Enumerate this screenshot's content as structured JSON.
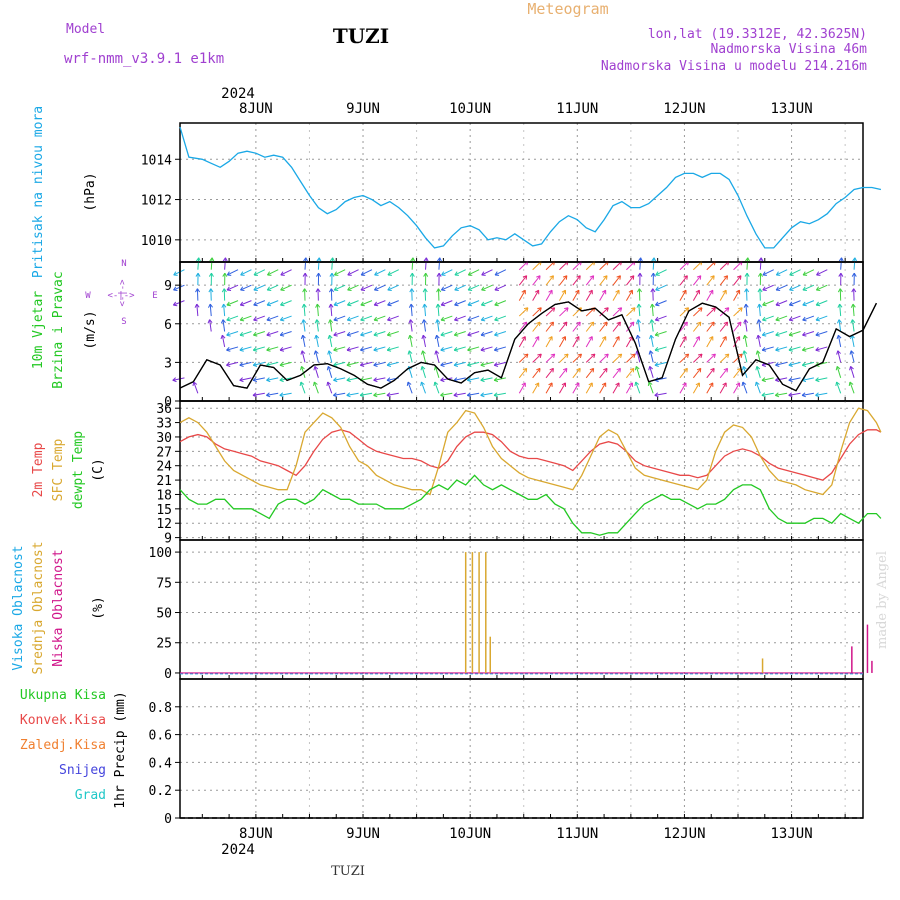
{
  "header": {
    "model_label": "Model",
    "model_value": "wrf-nmm_v3.9.1  e1km",
    "station": "TUZI",
    "app_title": "Meteogram",
    "coords": "lon,lat (19.3312E, 42.3625N)",
    "altitude": "Nadmorska Visina 46m",
    "model_altitude": "Nadmorska Visina u modelu 214.216m",
    "footer_station": "TUZI",
    "watermark": "made by Angel"
  },
  "colors": {
    "pressure": "#1aa8e6",
    "temp2m": "#e84848",
    "sfc_temp": "#d9a830",
    "dewpoint": "#22c822",
    "high_cloud": "#1aa8e6",
    "mid_cloud": "#d9a830",
    "low_cloud": "#d0158a",
    "rain_total": "#22c822",
    "rain_conv": "#e84848",
    "freezing": "#f08030",
    "snow": "#4444dd",
    "hail": "#20c8c8",
    "model": "#a040d0",
    "meteogram": "#e8b070"
  },
  "x_axis": {
    "year": "2024",
    "days": [
      "8JUN",
      "9JUN",
      "10JUN",
      "11JUN",
      "12JUN",
      "13JUN"
    ],
    "start_hours_before_8jun": 17,
    "end_hours_after_13jun": 16
  },
  "chart_data": [
    {
      "type": "line",
      "panel": "pressure",
      "ylabel_name": "Pritisak na nivou mora",
      "unit": "(hPa)",
      "ylim": [
        1008.9,
        1015.8
      ],
      "yticks": [
        1010,
        1012,
        1014
      ],
      "x_hours": [
        -17,
        -15,
        -12,
        -10,
        -8,
        -6,
        -4,
        -2,
        0,
        2,
        4,
        6,
        8,
        10,
        12,
        14,
        16,
        18,
        20,
        22,
        24,
        26,
        28,
        30,
        32,
        34,
        36,
        38,
        40,
        42,
        44,
        46,
        48,
        50,
        52,
        54,
        56,
        58,
        60,
        62,
        64,
        66,
        68,
        70,
        72,
        74,
        76,
        78,
        80,
        82,
        84,
        86,
        88,
        90,
        92,
        94,
        96,
        98,
        100,
        102,
        104,
        106,
        108,
        110,
        112,
        114,
        116,
        118,
        120,
        122,
        124,
        126,
        128,
        130,
        132,
        134,
        136,
        138,
        140
      ],
      "series": [
        {
          "key": "pressure",
          "values": [
            1015.6,
            1014.1,
            1014.0,
            1013.8,
            1013.6,
            1013.9,
            1014.3,
            1014.4,
            1014.3,
            1014.1,
            1014.2,
            1014.1,
            1013.6,
            1012.9,
            1012.2,
            1011.6,
            1011.3,
            1011.5,
            1011.9,
            1012.1,
            1012.2,
            1012.0,
            1011.7,
            1011.9,
            1011.6,
            1011.2,
            1010.7,
            1010.1,
            1009.6,
            1009.7,
            1010.2,
            1010.6,
            1010.7,
            1010.5,
            1010.0,
            1010.1,
            1010.0,
            1010.3,
            1010.0,
            1009.7,
            1009.8,
            1010.4,
            1010.9,
            1011.2,
            1011.0,
            1010.6,
            1010.4,
            1011.0,
            1011.7,
            1011.9,
            1011.6,
            1011.6,
            1011.8,
            1012.2,
            1012.6,
            1013.1,
            1013.3,
            1013.3,
            1013.1,
            1013.3,
            1013.3,
            1013.0,
            1012.2,
            1011.2,
            1010.3,
            1009.6,
            1009.6,
            1010.1,
            1010.6,
            1010.9,
            1010.8,
            1011.0,
            1011.3,
            1011.8,
            1012.1,
            1012.5,
            1012.6,
            1012.6,
            1012.5
          ]
        }
      ]
    },
    {
      "type": "line",
      "panel": "wind",
      "ylabel_name": "10m Vjetar",
      "ylabel_sub": "Brzina i Pravac",
      "unit": "(m/s)",
      "ylim": [
        0,
        10.8
      ],
      "yticks": [
        0,
        3,
        6,
        9
      ],
      "compass": {
        "n": "N",
        "s": "S",
        "e": "E",
        "w": "W",
        "sep": "<-|->"
      },
      "x_hours": [
        -17,
        -14,
        -11,
        -8,
        -5,
        -2,
        1,
        4,
        7,
        10,
        13,
        16,
        19,
        22,
        25,
        28,
        31,
        34,
        37,
        40,
        43,
        46,
        49,
        52,
        55,
        58,
        61,
        64,
        67,
        70,
        73,
        76,
        79,
        82,
        85,
        88,
        91,
        94,
        97,
        100,
        103,
        106,
        109,
        112,
        115,
        118,
        121,
        124,
        127,
        130,
        133,
        136,
        139
      ],
      "series": [
        {
          "key": "speed",
          "values": [
            1.0,
            1.5,
            3.2,
            2.8,
            1.2,
            1.0,
            2.8,
            2.6,
            1.6,
            2.0,
            2.8,
            2.9,
            2.5,
            2.0,
            1.3,
            1.0,
            1.6,
            2.5,
            3.0,
            2.8,
            1.7,
            1.4,
            2.2,
            2.4,
            1.8,
            4.8,
            6.0,
            6.8,
            7.5,
            7.7,
            7.0,
            7.2,
            6.3,
            6.7,
            4.5,
            1.5,
            1.8,
            4.8,
            7.0,
            7.6,
            7.3,
            6.5,
            2.0,
            3.2,
            2.8,
            1.3,
            0.8,
            2.5,
            3.0,
            5.6,
            5.0,
            5.5,
            7.6
          ]
        }
      ]
    },
    {
      "type": "line",
      "panel": "temperature",
      "ylabel_names": [
        "2m Temp",
        "SFC Temp",
        "dewpt Temp"
      ],
      "unit": "(C)",
      "ylim": [
        8.5,
        37.5
      ],
      "yticks": [
        9,
        12,
        15,
        18,
        21,
        24,
        27,
        30,
        33,
        36
      ],
      "x_hours": [
        -17,
        -15,
        -13,
        -11,
        -9,
        -7,
        -5,
        -3,
        -1,
        1,
        3,
        5,
        7,
        9,
        11,
        13,
        15,
        17,
        19,
        21,
        23,
        25,
        27,
        29,
        31,
        33,
        35,
        37,
        39,
        41,
        43,
        45,
        47,
        49,
        51,
        53,
        55,
        57,
        59,
        61,
        63,
        65,
        67,
        69,
        71,
        73,
        75,
        77,
        79,
        81,
        83,
        85,
        87,
        89,
        91,
        93,
        95,
        97,
        99,
        101,
        103,
        105,
        107,
        109,
        111,
        113,
        115,
        117,
        119,
        121,
        123,
        125,
        127,
        129,
        131,
        133,
        135,
        137,
        139,
        140
      ],
      "series": [
        {
          "key": "temp2m",
          "values": [
            29,
            30,
            30.5,
            30,
            28.5,
            27.5,
            27,
            26.5,
            26,
            25,
            24.5,
            24,
            23,
            22,
            24,
            27,
            29.5,
            31,
            31.5,
            31,
            29.5,
            28,
            27,
            26.5,
            26,
            25.5,
            25.5,
            25,
            24,
            23.5,
            25,
            28,
            30,
            31,
            31,
            30.5,
            29,
            27,
            26,
            25.5,
            25.5,
            25,
            24.5,
            24,
            23,
            25,
            27,
            28.5,
            29,
            28.5,
            27,
            25,
            24,
            23.5,
            23,
            22.5,
            22,
            22,
            21.5,
            22,
            24,
            26,
            27,
            27.5,
            27,
            26,
            24.5,
            23.5,
            23,
            22.5,
            22,
            21.5,
            21,
            22.5,
            25.5,
            28.5,
            30.5,
            31.5,
            31.5,
            31
          ]
        },
        {
          "key": "sfc_temp",
          "values": [
            33,
            34,
            33,
            31,
            28,
            25,
            23,
            22,
            21,
            20,
            19.5,
            19,
            19,
            24,
            31,
            33,
            35,
            34,
            32,
            28,
            25,
            24,
            22,
            21,
            20,
            19.5,
            19,
            19,
            18,
            24,
            31,
            33,
            35.5,
            35,
            32,
            28,
            25.5,
            24,
            22.5,
            21.5,
            21,
            20.5,
            20,
            19.5,
            19,
            22,
            26,
            30,
            31.5,
            30.5,
            27,
            23.5,
            22,
            21.5,
            21,
            20.5,
            20,
            19.5,
            19,
            21,
            27,
            31,
            32.5,
            32,
            30,
            26,
            23,
            21,
            20.5,
            20,
            19,
            18.5,
            18,
            20,
            27,
            33,
            36,
            35.5,
            33,
            31
          ]
        },
        {
          "key": "dewpoint",
          "values": [
            19,
            17,
            16,
            16,
            17,
            17,
            15,
            15,
            15,
            14,
            13,
            16,
            17,
            17,
            16,
            17,
            19,
            18,
            17,
            17,
            16,
            16,
            16,
            15,
            15,
            15,
            16,
            17,
            19,
            20,
            19,
            21,
            20,
            22,
            20,
            19,
            20,
            19,
            18,
            17,
            17,
            18,
            16,
            15,
            12,
            10,
            10,
            9.5,
            10,
            10,
            12,
            14,
            16,
            17,
            18,
            17,
            17,
            16,
            15,
            16,
            16,
            17,
            19,
            20,
            20,
            19,
            15,
            13,
            12,
            12,
            12,
            13,
            13,
            12,
            14,
            13,
            12,
            14,
            14,
            13
          ]
        }
      ]
    },
    {
      "type": "bar",
      "panel": "clouds",
      "ylabel_names": [
        "Visoka Oblacnost",
        "Srednja Oblacnost",
        "Niska Oblacnost"
      ],
      "unit": "(%)",
      "ylim": [
        -5,
        110
      ],
      "yticks": [
        0,
        25,
        50,
        75,
        100
      ],
      "series": [
        {
          "key": "mid_cloud",
          "x_hours": [
            47,
            48.5,
            50,
            51.5,
            52.5
          ],
          "values": [
            100,
            100,
            100,
            100,
            30
          ]
        },
        {
          "key": "mid_cloud",
          "x_hours": [
            113.5
          ],
          "values": [
            12
          ]
        },
        {
          "key": "low_cloud",
          "x_hours": [
            133.5,
            137,
            138
          ],
          "values": [
            22,
            40,
            10
          ]
        }
      ]
    },
    {
      "type": "line",
      "panel": "precip",
      "ylabel_names": [
        "Ukupna Kisa",
        "Konvek.Kisa",
        "Zaledj.Kisa",
        "Snijeg",
        "Grad"
      ],
      "unit": "1hr Precip (mm)",
      "ylim": [
        0,
        1.0
      ],
      "yticks": [
        0,
        0.2,
        0.4,
        0.6,
        0.8
      ],
      "tick_labels": [
        "0",
        "0.2",
        "0.4",
        "0.6",
        "0.8"
      ],
      "series": []
    }
  ]
}
